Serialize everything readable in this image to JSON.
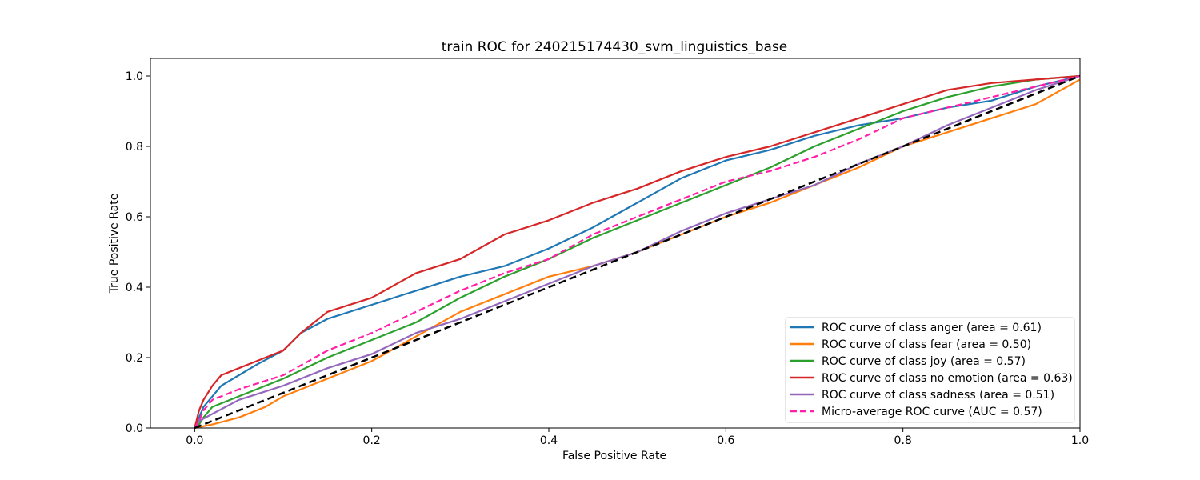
{
  "chart_data": {
    "type": "line",
    "title": "train ROC for 240215174430_svm_linguistics_base",
    "xlabel": "False Positive Rate",
    "ylabel": "True Positive Rate",
    "xlim": [
      -0.05,
      1.0
    ],
    "ylim": [
      0.0,
      1.05
    ],
    "x_ticks": [
      "0.0",
      "0.2",
      "0.4",
      "0.6",
      "0.8",
      "1.0"
    ],
    "y_ticks": [
      "0.0",
      "0.2",
      "0.4",
      "0.6",
      "0.8",
      "1.0"
    ],
    "grid": false,
    "legend_position": "lower-right",
    "series": [
      {
        "name": "ROC curve of class anger (area = 0.61)",
        "color": "#1f77b4",
        "style": "solid",
        "x": [
          0.0,
          0.005,
          0.01,
          0.02,
          0.03,
          0.05,
          0.07,
          0.1,
          0.12,
          0.15,
          0.2,
          0.25,
          0.3,
          0.35,
          0.4,
          0.45,
          0.5,
          0.55,
          0.6,
          0.65,
          0.7,
          0.75,
          0.8,
          0.85,
          0.9,
          0.95,
          1.0
        ],
        "y": [
          0.0,
          0.03,
          0.06,
          0.09,
          0.12,
          0.15,
          0.18,
          0.22,
          0.27,
          0.31,
          0.35,
          0.39,
          0.43,
          0.46,
          0.51,
          0.57,
          0.64,
          0.71,
          0.76,
          0.79,
          0.83,
          0.86,
          0.88,
          0.91,
          0.93,
          0.97,
          1.0
        ]
      },
      {
        "name": "ROC curve of class fear (area = 0.50)",
        "color": "#ff7f0e",
        "style": "solid",
        "x": [
          0.0,
          0.02,
          0.05,
          0.08,
          0.1,
          0.15,
          0.2,
          0.25,
          0.3,
          0.35,
          0.4,
          0.45,
          0.5,
          0.55,
          0.6,
          0.65,
          0.7,
          0.75,
          0.8,
          0.85,
          0.9,
          0.95,
          1.0
        ],
        "y": [
          0.0,
          0.01,
          0.03,
          0.06,
          0.09,
          0.14,
          0.19,
          0.26,
          0.33,
          0.38,
          0.43,
          0.46,
          0.5,
          0.55,
          0.6,
          0.64,
          0.69,
          0.74,
          0.8,
          0.84,
          0.88,
          0.92,
          0.99
        ]
      },
      {
        "name": "ROC curve of class joy (area = 0.57)",
        "color": "#2ca02c",
        "style": "solid",
        "x": [
          0.0,
          0.005,
          0.01,
          0.02,
          0.05,
          0.1,
          0.15,
          0.2,
          0.25,
          0.3,
          0.35,
          0.4,
          0.45,
          0.5,
          0.55,
          0.6,
          0.65,
          0.7,
          0.75,
          0.8,
          0.85,
          0.9,
          0.95,
          1.0
        ],
        "y": [
          0.0,
          0.01,
          0.03,
          0.06,
          0.09,
          0.14,
          0.2,
          0.25,
          0.3,
          0.37,
          0.43,
          0.48,
          0.54,
          0.59,
          0.64,
          0.69,
          0.74,
          0.8,
          0.85,
          0.9,
          0.94,
          0.97,
          0.99,
          1.0
        ]
      },
      {
        "name": "ROC curve of class no emotion (area = 0.63)",
        "color": "#d62728",
        "style": "solid",
        "x": [
          0.0,
          0.005,
          0.01,
          0.02,
          0.03,
          0.05,
          0.07,
          0.1,
          0.12,
          0.15,
          0.2,
          0.25,
          0.3,
          0.35,
          0.4,
          0.45,
          0.5,
          0.55,
          0.6,
          0.65,
          0.7,
          0.75,
          0.8,
          0.85,
          0.9,
          0.95,
          1.0
        ],
        "y": [
          0.0,
          0.05,
          0.08,
          0.12,
          0.15,
          0.17,
          0.19,
          0.22,
          0.27,
          0.33,
          0.37,
          0.44,
          0.48,
          0.55,
          0.59,
          0.64,
          0.68,
          0.73,
          0.77,
          0.8,
          0.84,
          0.88,
          0.92,
          0.96,
          0.98,
          0.99,
          1.0
        ]
      },
      {
        "name": "ROC curve of class sadness (area = 0.51)",
        "color": "#9467bd",
        "style": "solid",
        "x": [
          0.0,
          0.005,
          0.02,
          0.05,
          0.1,
          0.15,
          0.2,
          0.25,
          0.3,
          0.35,
          0.4,
          0.45,
          0.5,
          0.55,
          0.6,
          0.65,
          0.7,
          0.75,
          0.8,
          0.85,
          0.9,
          0.95,
          1.0
        ],
        "y": [
          0.0,
          0.02,
          0.04,
          0.08,
          0.12,
          0.17,
          0.21,
          0.27,
          0.31,
          0.36,
          0.41,
          0.46,
          0.5,
          0.56,
          0.61,
          0.65,
          0.69,
          0.75,
          0.8,
          0.86,
          0.91,
          0.96,
          1.0
        ]
      },
      {
        "name": "Micro-average ROC curve (AUC = 0.57)",
        "color": "#ff1fa9",
        "style": "dashed",
        "x": [
          0.0,
          0.005,
          0.01,
          0.02,
          0.05,
          0.1,
          0.15,
          0.2,
          0.25,
          0.3,
          0.35,
          0.4,
          0.45,
          0.5,
          0.55,
          0.6,
          0.65,
          0.7,
          0.75,
          0.8,
          0.85,
          0.9,
          0.95,
          1.0
        ],
        "y": [
          0.0,
          0.02,
          0.05,
          0.08,
          0.11,
          0.15,
          0.22,
          0.27,
          0.33,
          0.39,
          0.44,
          0.48,
          0.55,
          0.6,
          0.65,
          0.7,
          0.73,
          0.77,
          0.82,
          0.88,
          0.91,
          0.94,
          0.97,
          1.0
        ]
      },
      {
        "name": "",
        "color": "#000000",
        "style": "dashed-reference",
        "x": [
          0.0,
          1.0
        ],
        "y": [
          0.0,
          1.0
        ]
      }
    ]
  }
}
